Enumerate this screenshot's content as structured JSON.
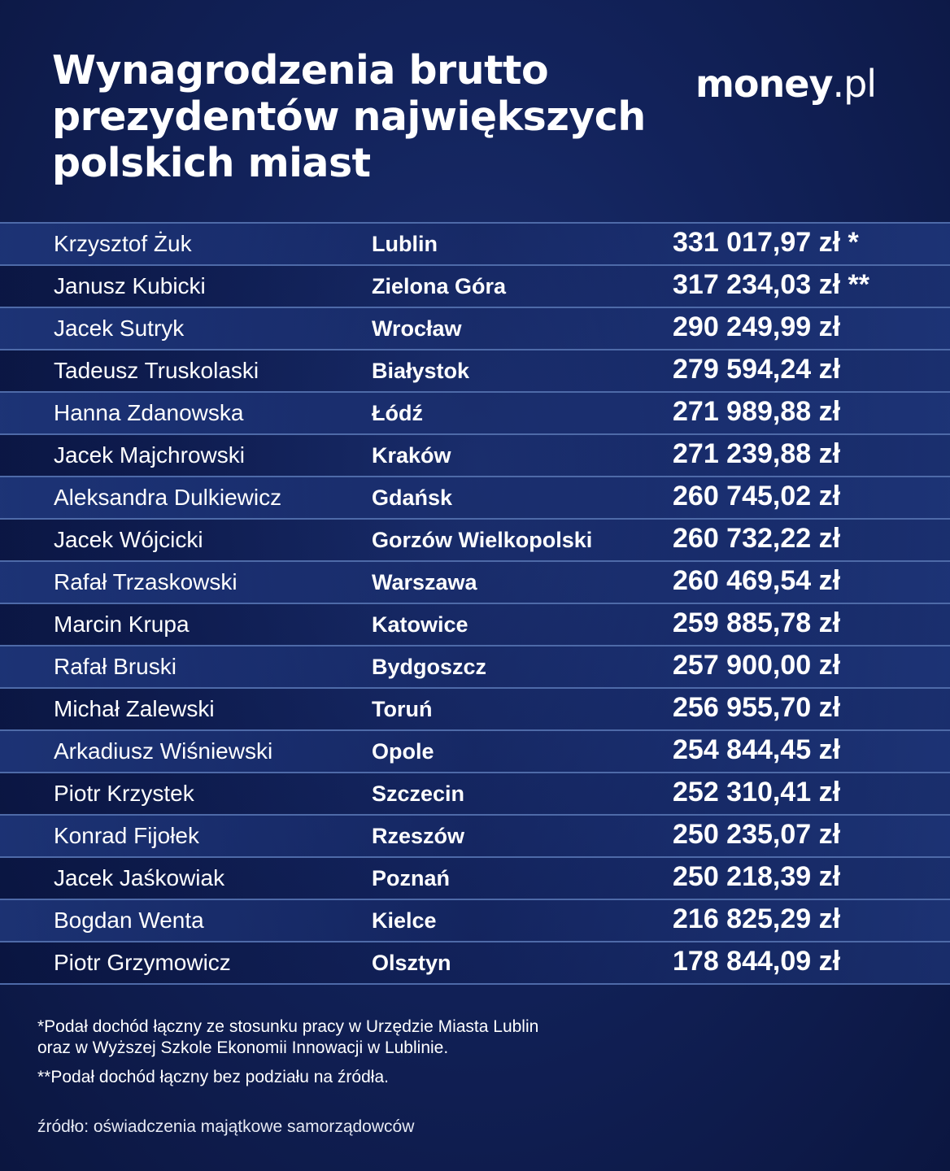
{
  "header": {
    "title_lines": [
      "Wynagrodzenia brutto",
      "prezydentów największych",
      "polskich miast"
    ],
    "logo_bold": "money",
    "logo_light": ".pl"
  },
  "chart_data": {
    "type": "table",
    "title": "Wynagrodzenia brutto prezydentów największych polskich miast",
    "columns": [
      "name",
      "city",
      "amount"
    ],
    "rows": [
      {
        "name": "Krzysztof Żuk",
        "city": "Lublin",
        "amount": "331 017,97 zł *",
        "value": 331017.97
      },
      {
        "name": "Janusz Kubicki",
        "city": "Zielona Góra",
        "amount": "317 234,03 zł **",
        "value": 317234.03
      },
      {
        "name": "Jacek Sutryk",
        "city": "Wrocław",
        "amount": "290 249,99 zł",
        "value": 290249.99
      },
      {
        "name": "Tadeusz Truskolaski",
        "city": "Białystok",
        "amount": "279 594,24 zł",
        "value": 279594.24
      },
      {
        "name": "Hanna Zdanowska",
        "city": "Łódź",
        "amount": "271 989,88 zł",
        "value": 271989.88
      },
      {
        "name": "Jacek Majchrowski",
        "city": "Kraków",
        "amount": "271 239,88 zł",
        "value": 271239.88
      },
      {
        "name": "Aleksandra Dulkiewicz",
        "city": "Gdańsk",
        "amount": "260 745,02 zł",
        "value": 260745.02
      },
      {
        "name": "Jacek Wójcicki",
        "city": "Gorzów Wielkopolski",
        "amount": "260 732,22 zł",
        "value": 260732.22
      },
      {
        "name": "Rafał Trzaskowski",
        "city": "Warszawa",
        "amount": "260 469,54 zł",
        "value": 260469.54
      },
      {
        "name": "Marcin Krupa",
        "city": "Katowice",
        "amount": "259 885,78 zł",
        "value": 259885.78
      },
      {
        "name": "Rafał Bruski",
        "city": "Bydgoszcz",
        "amount": "257 900,00 zł",
        "value": 257900.0
      },
      {
        "name": "Michał Zalewski",
        "city": "Toruń",
        "amount": "256 955,70 zł",
        "value": 256955.7
      },
      {
        "name": "Arkadiusz Wiśniewski",
        "city": "Opole",
        "amount": "254 844,45 zł",
        "value": 254844.45
      },
      {
        "name": "Piotr Krzystek",
        "city": "Szczecin",
        "amount": "252 310,41 zł",
        "value": 252310.41
      },
      {
        "name": "Konrad Fijołek",
        "city": "Rzeszów",
        "amount": "250 235,07 zł",
        "value": 250235.07
      },
      {
        "name": "Jacek Jaśkowiak",
        "city": "Poznań",
        "amount": "250 218,39 zł",
        "value": 250218.39
      },
      {
        "name": "Bogdan Wenta",
        "city": "Kielce",
        "amount": "216 825,29 zł",
        "value": 216825.29
      },
      {
        "name": "Piotr Grzymowicz",
        "city": "Olsztyn",
        "amount": "178 844,09 zł",
        "value": 178844.09
      }
    ]
  },
  "footnotes": {
    "note1_lines": [
      "*Podał dochód łączny ze stosunku pracy w Urzędzie Miasta Lublin",
      "oraz w Wyższej Szkole Ekonomii Innowacji w Lublinie."
    ],
    "note2": "**Podał dochód łączny bez podziału na źródła.",
    "source": "źródło: oświadczenia majątkowe samorządowców"
  }
}
